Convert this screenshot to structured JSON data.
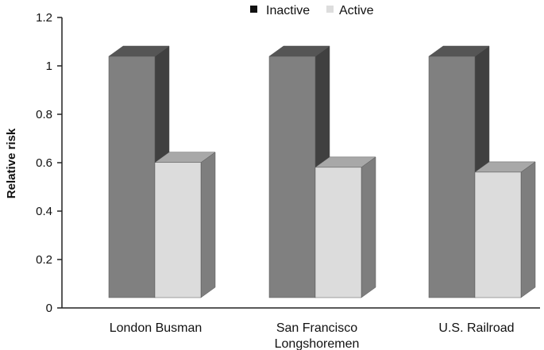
{
  "chart_data": {
    "type": "bar",
    "style": "3d-column",
    "categories": [
      "London Busman",
      "San Francisco Longshoremen",
      "U.S. Railroad"
    ],
    "category_label_lines": [
      [
        "London Busman"
      ],
      [
        "San Francisco",
        "Longshoremen"
      ],
      [
        "U.S. Railroad"
      ]
    ],
    "series": [
      {
        "name": "Inactive",
        "values": [
          1.0,
          1.0,
          1.0
        ],
        "color": "#808080",
        "side_color": "#404040",
        "top_color": "#555555"
      },
      {
        "name": "Active",
        "values": [
          0.56,
          0.54,
          0.52
        ],
        "color": "#dcdcdc",
        "side_color": "#7e7e7e",
        "top_color": "#a8a8a8"
      }
    ],
    "ylabel": "Relative risk",
    "xlabel": "",
    "ylim": [
      0,
      1.2
    ],
    "yticks": [
      "0",
      "0.2",
      "0.4",
      "0.6",
      "0.8",
      "1",
      "1.2"
    ],
    "grid": false,
    "legend_position": "top-center",
    "legend_marker_colors": [
      "#111111",
      "#dddddd"
    ]
  }
}
